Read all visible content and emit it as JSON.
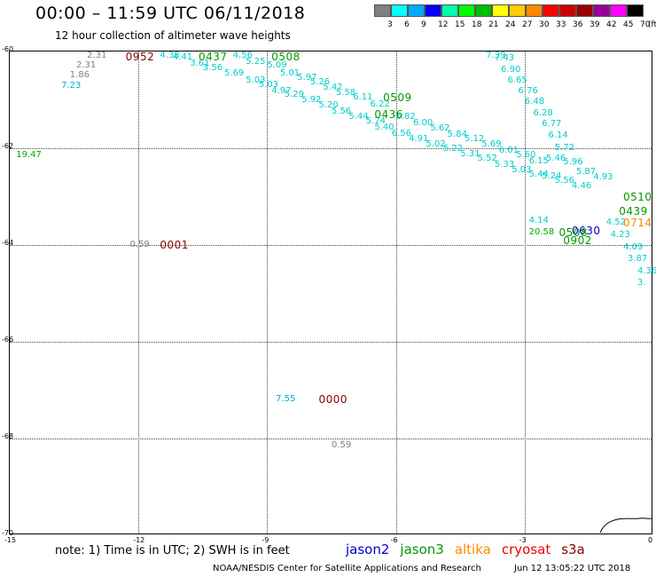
{
  "header": {
    "title": "00:00 – 11:59 UTC 06/11/2018",
    "subtitle": "12 hour collection of altimeter wave heights"
  },
  "scale": {
    "unit_label": "(ft)",
    "ticks": [
      "3",
      "6",
      "9",
      "12",
      "15",
      "18",
      "21",
      "24",
      "27",
      "30",
      "33",
      "36",
      "39",
      "42",
      "45",
      "70"
    ],
    "colors": [
      "#808080",
      "#00ffff",
      "#00aaff",
      "#0000ff",
      "#00ffaa",
      "#00ff00",
      "#00bb00",
      "#ffff00",
      "#ffcc00",
      "#ff8800",
      "#ff0000",
      "#cc0000",
      "#990000",
      "#990099",
      "#ff00ff",
      "#000000"
    ]
  },
  "axes": {
    "y_labels": [
      "-60",
      "-62",
      "-64",
      "-66",
      "-68",
      "-70"
    ],
    "x_labels": [
      "-15",
      "-12",
      "-9",
      "-6",
      "-3",
      "0"
    ]
  },
  "map_data": {
    "lon_range": [
      -15,
      0
    ],
    "lat_range": [
      -70,
      -60
    ],
    "time_labels": [
      {
        "text": "0952",
        "lon": -12.3,
        "lat": -60.1,
        "color": "#880000"
      },
      {
        "text": "0437",
        "lon": -10.6,
        "lat": -60.05,
        "color": "#009900"
      },
      {
        "text": "0508",
        "lon": -8.9,
        "lat": -60.1,
        "color": "#009900"
      },
      {
        "text": "0509",
        "lon": -6.3,
        "lat": -60.95,
        "color": "#009900"
      },
      {
        "text": "0436",
        "lon": -6.5,
        "lat": -61.3,
        "color": "#009900"
      },
      {
        "text": "0001",
        "lon": -11.5,
        "lat": -64.0,
        "color": "#880000"
      },
      {
        "text": "0000",
        "lon": -7.8,
        "lat": -67.2,
        "color": "#880000"
      },
      {
        "text": "0510",
        "lon": -0.6,
        "lat": -63.0,
        "color": "#009900"
      },
      {
        "text": "0439",
        "lon": -0.8,
        "lat": -63.3,
        "color": "#009900"
      },
      {
        "text": "0714",
        "lon": -0.2,
        "lat": -63.55,
        "color": "#ff8800"
      },
      {
        "text": "0630",
        "lon": -1.9,
        "lat": -63.7,
        "color": "#0000cc"
      },
      {
        "text": "0902",
        "lon": -2.1,
        "lat": -63.9,
        "color": "#009900"
      },
      {
        "text": "0508",
        "lon": -2.2,
        "lat": -63.75,
        "color": "#009900"
      }
    ],
    "swh_points": [
      {
        "v": "2.31",
        "lon": -13.2,
        "lat": -60.1,
        "color": "#808080"
      },
      {
        "v": "2.31",
        "lon": -13.45,
        "lat": -60.3,
        "color": "#808080"
      },
      {
        "v": "1.86",
        "lon": -13.6,
        "lat": -60.5,
        "color": "#808080"
      },
      {
        "v": "7.23",
        "lon": -13.8,
        "lat": -60.72,
        "color": "#00aadd"
      },
      {
        "v": "19.47",
        "lon": -14.85,
        "lat": -62.15,
        "color": "#00aa00"
      },
      {
        "v": "0.59",
        "lon": -12.2,
        "lat": -64.0,
        "color": "#808080"
      },
      {
        "v": "7.55",
        "lon": -8.8,
        "lat": -67.2,
        "color": "#00aadd"
      },
      {
        "v": "0.59",
        "lon": -7.5,
        "lat": -68.15,
        "color": "#808080"
      },
      {
        "v": "4.38",
        "lon": -11.5,
        "lat": -60.0,
        "color": "#00cccc"
      },
      {
        "v": "4.41",
        "lon": -11.2,
        "lat": -60.12,
        "color": "#00cccc"
      },
      {
        "v": "3.61",
        "lon": -10.8,
        "lat": -60.25,
        "color": "#00cccc"
      },
      {
        "v": "3.56",
        "lon": -10.5,
        "lat": -60.35,
        "color": "#00cccc"
      },
      {
        "v": "4.56",
        "lon": -9.8,
        "lat": -60.1,
        "color": "#00cccc"
      },
      {
        "v": "5.25",
        "lon": -9.5,
        "lat": -60.22,
        "color": "#00cccc"
      },
      {
        "v": "5.69",
        "lon": -10.0,
        "lat": -60.45,
        "color": "#00cccc"
      },
      {
        "v": "5.03",
        "lon": -9.5,
        "lat": -60.6,
        "color": "#00cccc"
      },
      {
        "v": "5.09",
        "lon": -9.0,
        "lat": -60.3,
        "color": "#00cccc"
      },
      {
        "v": "5.01",
        "lon": -8.7,
        "lat": -60.45,
        "color": "#00cccc"
      },
      {
        "v": "5.03",
        "lon": -9.2,
        "lat": -60.7,
        "color": "#00cccc"
      },
      {
        "v": "4.97",
        "lon": -8.9,
        "lat": -60.82,
        "color": "#00cccc"
      },
      {
        "v": "5.97",
        "lon": -8.3,
        "lat": -60.55,
        "color": "#00cccc"
      },
      {
        "v": "5.26",
        "lon": -8.0,
        "lat": -60.65,
        "color": "#00cccc"
      },
      {
        "v": "5.29",
        "lon": -8.6,
        "lat": -60.9,
        "color": "#00cccc"
      },
      {
        "v": "5.92",
        "lon": -8.2,
        "lat": -61.0,
        "color": "#00cccc"
      },
      {
        "v": "5.42",
        "lon": -7.7,
        "lat": -60.75,
        "color": "#00cccc"
      },
      {
        "v": "5.58",
        "lon": -7.4,
        "lat": -60.87,
        "color": "#00cccc"
      },
      {
        "v": "5.20",
        "lon": -7.8,
        "lat": -61.12,
        "color": "#00cccc"
      },
      {
        "v": "5.56",
        "lon": -7.5,
        "lat": -61.25,
        "color": "#00cccc"
      },
      {
        "v": "6.11",
        "lon": -7.0,
        "lat": -60.95,
        "color": "#00cccc"
      },
      {
        "v": "5.44",
        "lon": -7.1,
        "lat": -61.35,
        "color": "#00cccc"
      },
      {
        "v": "6.22",
        "lon": -6.6,
        "lat": -61.1,
        "color": "#00cccc"
      },
      {
        "v": "5.74",
        "lon": -6.7,
        "lat": -61.45,
        "color": "#00cccc"
      },
      {
        "v": "5.40",
        "lon": -6.5,
        "lat": -61.58,
        "color": "#00cccc"
      },
      {
        "v": "6.82",
        "lon": -6.0,
        "lat": -61.35,
        "color": "#00cccc"
      },
      {
        "v": "6.56",
        "lon": -6.1,
        "lat": -61.7,
        "color": "#00cccc"
      },
      {
        "v": "6.00",
        "lon": -5.6,
        "lat": -61.48,
        "color": "#00cccc"
      },
      {
        "v": "4.91",
        "lon": -5.7,
        "lat": -61.82,
        "color": "#00cccc"
      },
      {
        "v": "5.62",
        "lon": -5.2,
        "lat": -61.6,
        "color": "#00cccc"
      },
      {
        "v": "5.02",
        "lon": -5.3,
        "lat": -61.92,
        "color": "#00cccc"
      },
      {
        "v": "5.84",
        "lon": -4.8,
        "lat": -61.72,
        "color": "#00cccc"
      },
      {
        "v": "5.22",
        "lon": -4.9,
        "lat": -62.02,
        "color": "#00cccc"
      },
      {
        "v": "5.12",
        "lon": -4.4,
        "lat": -61.82,
        "color": "#00cccc"
      },
      {
        "v": "5.31",
        "lon": -4.5,
        "lat": -62.12,
        "color": "#00cccc"
      },
      {
        "v": "5.69",
        "lon": -4.0,
        "lat": -61.92,
        "color": "#00cccc"
      },
      {
        "v": "5.52",
        "lon": -4.1,
        "lat": -62.22,
        "color": "#00cccc"
      },
      {
        "v": "6.01",
        "lon": -3.6,
        "lat": -62.05,
        "color": "#00cccc"
      },
      {
        "v": "5.33",
        "lon": -3.7,
        "lat": -62.35,
        "color": "#00cccc"
      },
      {
        "v": "5.60",
        "lon": -3.2,
        "lat": -62.15,
        "color": "#00cccc"
      },
      {
        "v": "5.03",
        "lon": -3.3,
        "lat": -62.45,
        "color": "#00cccc"
      },
      {
        "v": "6.15",
        "lon": -2.9,
        "lat": -62.27,
        "color": "#00cccc"
      },
      {
        "v": "5.44",
        "lon": -2.9,
        "lat": -62.55,
        "color": "#00cccc"
      },
      {
        "v": "7.39",
        "lon": -3.9,
        "lat": -59.95,
        "color": "#00cccc"
      },
      {
        "v": "7.43",
        "lon": -3.7,
        "lat": -60.15,
        "color": "#00cccc"
      },
      {
        "v": "6.90",
        "lon": -3.55,
        "lat": -60.38,
        "color": "#00cccc"
      },
      {
        "v": "6.65",
        "lon": -3.4,
        "lat": -60.6,
        "color": "#00cccc"
      },
      {
        "v": "6.76",
        "lon": -3.15,
        "lat": -60.82,
        "color": "#00cccc"
      },
      {
        "v": "6.48",
        "lon": -3.0,
        "lat": -61.05,
        "color": "#00cccc"
      },
      {
        "v": "6.28",
        "lon": -2.8,
        "lat": -61.28,
        "color": "#00cccc"
      },
      {
        "v": "6.77",
        "lon": -2.6,
        "lat": -61.5,
        "color": "#00cccc"
      },
      {
        "v": "6.14",
        "lon": -2.45,
        "lat": -61.75,
        "color": "#00cccc"
      },
      {
        "v": "5.72",
        "lon": -2.3,
        "lat": -62.0,
        "color": "#00cccc"
      },
      {
        "v": "5.46",
        "lon": -2.5,
        "lat": -62.22,
        "color": "#00cccc"
      },
      {
        "v": "5.24",
        "lon": -2.6,
        "lat": -62.58,
        "color": "#00cccc"
      },
      {
        "v": "5.56",
        "lon": -2.3,
        "lat": -62.68,
        "color": "#00cccc"
      },
      {
        "v": "5.96",
        "lon": -2.1,
        "lat": -62.3,
        "color": "#00cccc"
      },
      {
        "v": "5.87",
        "lon": -1.8,
        "lat": -62.5,
        "color": "#00cccc"
      },
      {
        "v": "4.93",
        "lon": -1.4,
        "lat": -62.6,
        "color": "#00cccc"
      },
      {
        "v": "4.46",
        "lon": -1.9,
        "lat": -62.78,
        "color": "#00cccc"
      },
      {
        "v": "4.52",
        "lon": -1.1,
        "lat": -63.55,
        "color": "#00cccc"
      },
      {
        "v": "4.23",
        "lon": -1.0,
        "lat": -63.8,
        "color": "#00cccc"
      },
      {
        "v": "4.09",
        "lon": -0.7,
        "lat": -64.05,
        "color": "#00cccc"
      },
      {
        "v": "3.87",
        "lon": -0.6,
        "lat": -64.3,
        "color": "#00cccc"
      },
      {
        "v": "4.36",
        "lon": -0.3,
        "lat": -64.55,
        "color": "#00cccc"
      },
      {
        "v": "3.",
        "lon": -0.1,
        "lat": -64.78,
        "color": "#00cccc"
      },
      {
        "v": "20.58",
        "lon": -2.9,
        "lat": -63.75,
        "color": "#00aa00"
      },
      {
        "v": "4.14",
        "lon": -2.9,
        "lat": -63.5,
        "color": "#00cccc"
      }
    ]
  },
  "note": "note:  1) Time is in UTC;  2) SWH is in feet",
  "satellites": [
    {
      "name": "jason2",
      "color": "#0000cc"
    },
    {
      "name": "jason3",
      "color": "#009900"
    },
    {
      "name": "altika",
      "color": "#ff8800"
    },
    {
      "name": "cryosat",
      "color": "#ee0000"
    },
    {
      "name": "s3a",
      "color": "#880000"
    }
  ],
  "footer": {
    "credit": "NOAA/NESDIS Center for Satellite Applications and Research",
    "timestamp": "Jun 12 13:05:22 UTC 2018"
  }
}
